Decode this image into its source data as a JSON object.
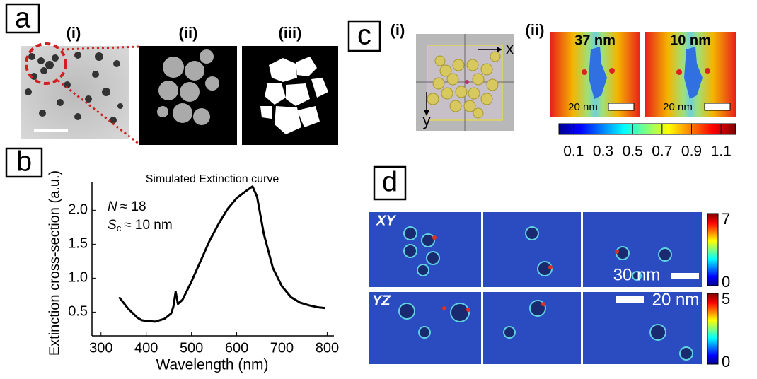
{
  "panel_a": {
    "label": "a",
    "sub": [
      "(i)",
      "(ii)",
      "(iii)"
    ]
  },
  "panel_b": {
    "label": "b"
  },
  "chart_data": {
    "type": "line",
    "title": "Simulated Extinction curve",
    "x_label": "Wavelength (nm)",
    "y_label": "Extinction cross-section (a.u.)",
    "annotations": [
      {
        "symbol": "N",
        "subscript": null,
        "text": "≈ 18"
      },
      {
        "symbol": "S",
        "subscript": "c",
        "text": "≈ 10 nm"
      }
    ],
    "x": [
      340,
      360,
      380,
      390,
      400,
      420,
      440,
      455,
      460,
      465,
      470,
      480,
      500,
      520,
      540,
      560,
      580,
      600,
      620,
      635,
      645,
      660,
      680,
      700,
      720,
      740,
      760,
      780,
      795
    ],
    "values": [
      0.72,
      0.55,
      0.42,
      0.38,
      0.37,
      0.36,
      0.4,
      0.48,
      0.58,
      0.8,
      0.62,
      0.68,
      0.95,
      1.25,
      1.55,
      1.8,
      2.02,
      2.18,
      2.28,
      2.35,
      2.2,
      1.65,
      1.15,
      0.88,
      0.72,
      0.64,
      0.6,
      0.57,
      0.56
    ],
    "color": "#000000",
    "xlim": [
      280,
      815
    ],
    "ylim": [
      0.15,
      2.42
    ],
    "xticks": [
      300,
      400,
      500,
      600,
      700,
      800
    ],
    "yticks": [
      {
        "value": 0.5,
        "label": "0.5"
      },
      {
        "value": 1.0,
        "label": "1.0"
      },
      {
        "value": 1.5,
        "label": "1.5"
      },
      {
        "value": 2.0,
        "label": "2.0"
      }
    ]
  },
  "panel_c": {
    "label": "c",
    "sub": [
      "(i)",
      "(ii)"
    ],
    "axes": [
      "x",
      "y"
    ],
    "maps": [
      "37 nm",
      "10 nm"
    ],
    "scale": [
      "20 nm",
      "20 nm"
    ],
    "colorbar": [
      "0.1",
      "0.3",
      "0.5",
      "0.7",
      "0.9",
      "1.1"
    ]
  },
  "panel_d": {
    "label": "d",
    "rows": [
      "XY",
      "YZ"
    ],
    "scale": [
      "30 nm",
      "20 nm"
    ],
    "colorbar_xy": [
      "7",
      "0"
    ],
    "colorbar_yz": [
      "5",
      "0"
    ]
  }
}
